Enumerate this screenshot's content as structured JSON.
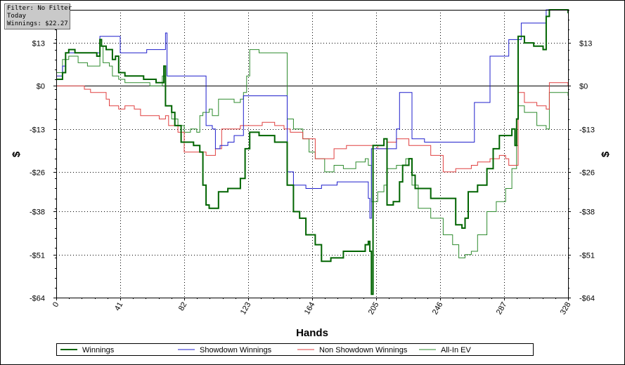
{
  "filter_box": {
    "line1": "Filter: No Filter",
    "line2": "Today",
    "line3": "Winnings: $22.27"
  },
  "chart_data": {
    "type": "line",
    "xlabel": "Hands",
    "ylabel": "$",
    "xlim": [
      0,
      328
    ],
    "ylim": [
      -64,
      23
    ],
    "x_ticks": [
      0,
      41,
      82,
      123,
      164,
      205,
      246,
      287,
      328
    ],
    "y_ticks": [
      13,
      0,
      -13,
      -26,
      -38,
      -51,
      -64
    ],
    "y_tick_labels": [
      "$13",
      "$0",
      "-$13",
      "-$26",
      "-$38",
      "-$51",
      "-$64"
    ],
    "grid": true,
    "legend_position": "bottom",
    "series": [
      {
        "name": "Winnings",
        "color": "#006400",
        "width": 2,
        "points": [
          [
            0,
            2
          ],
          [
            4,
            4
          ],
          [
            6,
            10
          ],
          [
            8,
            11
          ],
          [
            12,
            10
          ],
          [
            20,
            10
          ],
          [
            26,
            9
          ],
          [
            28,
            14
          ],
          [
            29,
            12
          ],
          [
            32,
            11
          ],
          [
            36,
            8
          ],
          [
            38,
            9
          ],
          [
            40,
            4
          ],
          [
            42,
            4
          ],
          [
            44,
            3
          ],
          [
            50,
            3
          ],
          [
            56,
            2
          ],
          [
            64,
            1
          ],
          [
            68,
            1
          ],
          [
            69,
            6
          ],
          [
            70,
            -6
          ],
          [
            74,
            -8
          ],
          [
            76,
            -12
          ],
          [
            80,
            -17
          ],
          [
            84,
            -17
          ],
          [
            88,
            -18
          ],
          [
            92,
            -20
          ],
          [
            94,
            -30
          ],
          [
            96,
            -36
          ],
          [
            98,
            -37
          ],
          [
            100,
            -37
          ],
          [
            104,
            -32
          ],
          [
            110,
            -31
          ],
          [
            118,
            -28
          ],
          [
            121,
            -19
          ],
          [
            124,
            -14
          ],
          [
            130,
            -15
          ],
          [
            140,
            -17
          ],
          [
            146,
            -17
          ],
          [
            148,
            -30
          ],
          [
            152,
            -38
          ],
          [
            156,
            -40
          ],
          [
            160,
            -45
          ],
          [
            166,
            -48
          ],
          [
            170,
            -53
          ],
          [
            176,
            -52
          ],
          [
            184,
            -50
          ],
          [
            192,
            -50
          ],
          [
            198,
            -48
          ],
          [
            200,
            -47
          ],
          [
            201,
            -50
          ],
          [
            202,
            -63
          ],
          [
            203,
            -18
          ],
          [
            208,
            -18
          ],
          [
            210,
            -16
          ],
          [
            212,
            -36
          ],
          [
            216,
            -35
          ],
          [
            220,
            -29
          ],
          [
            222,
            -24
          ],
          [
            226,
            -22
          ],
          [
            228,
            -27
          ],
          [
            230,
            -31
          ],
          [
            240,
            -34
          ],
          [
            256,
            -42
          ],
          [
            260,
            -43
          ],
          [
            262,
            -40
          ],
          [
            264,
            -32
          ],
          [
            270,
            -30
          ],
          [
            276,
            -25
          ],
          [
            280,
            -19
          ],
          [
            284,
            -15
          ],
          [
            288,
            -15
          ],
          [
            292,
            -13
          ],
          [
            294,
            -18
          ],
          [
            295,
            -10
          ],
          [
            296,
            15
          ],
          [
            300,
            13
          ],
          [
            306,
            12
          ],
          [
            312,
            11
          ],
          [
            314,
            21
          ],
          [
            316,
            23
          ],
          [
            328,
            22
          ]
        ]
      },
      {
        "name": "Showdown Winnings",
        "color": "#1f1fcc",
        "width": 1,
        "points": [
          [
            0,
            3
          ],
          [
            2,
            3
          ],
          [
            4,
            6
          ],
          [
            6,
            10
          ],
          [
            10,
            10
          ],
          [
            26,
            10
          ],
          [
            28,
            15
          ],
          [
            40,
            15
          ],
          [
            41,
            10
          ],
          [
            54,
            10
          ],
          [
            58,
            11
          ],
          [
            62,
            11
          ],
          [
            68,
            11
          ],
          [
            70,
            16
          ],
          [
            71,
            3
          ],
          [
            80,
            3
          ],
          [
            88,
            3
          ],
          [
            93,
            3
          ],
          [
            96,
            -12
          ],
          [
            100,
            -13
          ],
          [
            102,
            -19
          ],
          [
            105,
            -18
          ],
          [
            110,
            -17
          ],
          [
            114,
            -15
          ],
          [
            120,
            -3
          ],
          [
            124,
            -3
          ],
          [
            130,
            -3
          ],
          [
            136,
            -3
          ],
          [
            140,
            -3
          ],
          [
            146,
            -3
          ],
          [
            148,
            -26
          ],
          [
            152,
            -30
          ],
          [
            160,
            -31
          ],
          [
            170,
            -30
          ],
          [
            180,
            -29
          ],
          [
            190,
            -29
          ],
          [
            198,
            -29
          ],
          [
            200,
            -34
          ],
          [
            201,
            -40
          ],
          [
            202,
            -19
          ],
          [
            208,
            -19
          ],
          [
            214,
            -19
          ],
          [
            218,
            -13
          ],
          [
            220,
            -2
          ],
          [
            226,
            -2
          ],
          [
            228,
            -16
          ],
          [
            236,
            -17
          ],
          [
            250,
            -17
          ],
          [
            264,
            -17
          ],
          [
            268,
            -5
          ],
          [
            276,
            -5
          ],
          [
            278,
            9
          ],
          [
            288,
            9
          ],
          [
            290,
            14
          ],
          [
            296,
            14
          ],
          [
            298,
            19
          ],
          [
            310,
            19
          ],
          [
            314,
            23
          ],
          [
            328,
            22
          ]
        ]
      },
      {
        "name": "Non Showdown Winnings",
        "color": "#e04040",
        "width": 1,
        "points": [
          [
            0,
            0
          ],
          [
            6,
            0
          ],
          [
            12,
            0
          ],
          [
            18,
            -1
          ],
          [
            22,
            -2
          ],
          [
            28,
            -2
          ],
          [
            32,
            -4
          ],
          [
            34,
            -6
          ],
          [
            40,
            -7
          ],
          [
            44,
            -6
          ],
          [
            50,
            -7
          ],
          [
            54,
            -9
          ],
          [
            60,
            -9
          ],
          [
            66,
            -10
          ],
          [
            70,
            -9
          ],
          [
            72,
            -12
          ],
          [
            78,
            -14
          ],
          [
            82,
            -20
          ],
          [
            88,
            -20
          ],
          [
            96,
            -21
          ],
          [
            102,
            -19
          ],
          [
            106,
            -13
          ],
          [
            114,
            -13
          ],
          [
            118,
            -12
          ],
          [
            124,
            -12
          ],
          [
            132,
            -11
          ],
          [
            140,
            -12
          ],
          [
            146,
            -13
          ],
          [
            150,
            -14
          ],
          [
            158,
            -16
          ],
          [
            166,
            -22
          ],
          [
            172,
            -22
          ],
          [
            178,
            -19
          ],
          [
            186,
            -18
          ],
          [
            192,
            -18
          ],
          [
            200,
            -18
          ],
          [
            206,
            -19
          ],
          [
            212,
            -17
          ],
          [
            218,
            -16
          ],
          [
            226,
            -18
          ],
          [
            232,
            -18
          ],
          [
            240,
            -21
          ],
          [
            248,
            -26
          ],
          [
            256,
            -25
          ],
          [
            262,
            -25
          ],
          [
            266,
            -24
          ],
          [
            270,
            -23
          ],
          [
            278,
            -22
          ],
          [
            284,
            -21
          ],
          [
            288,
            -22
          ],
          [
            290,
            -24
          ],
          [
            294,
            -24
          ],
          [
            296,
            -2
          ],
          [
            300,
            -5
          ],
          [
            308,
            -6
          ],
          [
            314,
            -7
          ],
          [
            316,
            1
          ],
          [
            322,
            1
          ],
          [
            328,
            0
          ]
        ]
      },
      {
        "name": "All-In EV",
        "color": "#2e8b2e",
        "width": 1,
        "points": [
          [
            0,
            4
          ],
          [
            4,
            8
          ],
          [
            8,
            9
          ],
          [
            14,
            7
          ],
          [
            20,
            6
          ],
          [
            26,
            6
          ],
          [
            28,
            12
          ],
          [
            30,
            7
          ],
          [
            34,
            6
          ],
          [
            36,
            3
          ],
          [
            40,
            2
          ],
          [
            44,
            1
          ],
          [
            52,
            1
          ],
          [
            60,
            0
          ],
          [
            66,
            0
          ],
          [
            68,
            3
          ],
          [
            70,
            -6
          ],
          [
            74,
            -10
          ],
          [
            78,
            -12
          ],
          [
            82,
            -14
          ],
          [
            86,
            -13
          ],
          [
            90,
            -14
          ],
          [
            92,
            -9
          ],
          [
            94,
            -8
          ],
          [
            98,
            -7
          ],
          [
            100,
            -9
          ],
          [
            104,
            -4
          ],
          [
            110,
            -4
          ],
          [
            114,
            -5
          ],
          [
            118,
            -4
          ],
          [
            120,
            -2
          ],
          [
            122,
            3
          ],
          [
            124,
            11
          ],
          [
            130,
            10
          ],
          [
            136,
            10
          ],
          [
            146,
            10
          ],
          [
            148,
            -10
          ],
          [
            152,
            -13
          ],
          [
            158,
            -16
          ],
          [
            162,
            -20
          ],
          [
            166,
            -22
          ],
          [
            172,
            -26
          ],
          [
            178,
            -24
          ],
          [
            184,
            -25
          ],
          [
            192,
            -23
          ],
          [
            198,
            -22
          ],
          [
            200,
            -24
          ],
          [
            202,
            -35
          ],
          [
            206,
            -32
          ],
          [
            210,
            -30
          ],
          [
            212,
            -25
          ],
          [
            218,
            -24
          ],
          [
            224,
            -22
          ],
          [
            228,
            -30
          ],
          [
            232,
            -37
          ],
          [
            240,
            -40
          ],
          [
            248,
            -45
          ],
          [
            254,
            -48
          ],
          [
            258,
            -52
          ],
          [
            262,
            -51
          ],
          [
            266,
            -50
          ],
          [
            270,
            -45
          ],
          [
            276,
            -38
          ],
          [
            282,
            -35
          ],
          [
            288,
            -31
          ],
          [
            292,
            -25
          ],
          [
            295,
            -18
          ],
          [
            296,
            -6
          ],
          [
            300,
            -8
          ],
          [
            308,
            -12
          ],
          [
            314,
            -13
          ],
          [
            316,
            -2
          ],
          [
            320,
            -2
          ],
          [
            328,
            -3
          ]
        ]
      }
    ]
  }
}
